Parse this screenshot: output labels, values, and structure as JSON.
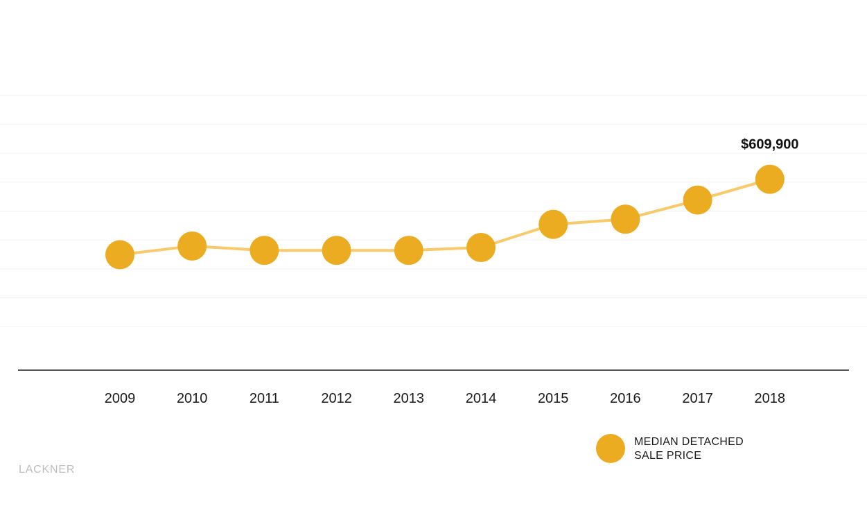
{
  "chart_data": {
    "type": "line",
    "categories": [
      "2009",
      "2010",
      "2011",
      "2012",
      "2013",
      "2014",
      "2015",
      "2016",
      "2017",
      "2018"
    ],
    "series": [
      {
        "name": "MEDIAN DETACHED SALE PRICE",
        "values": [
          349000,
          379000,
          364000,
          364000,
          364000,
          374000,
          454000,
          472000,
          538000,
          609900
        ],
        "data_labels": [
          "",
          "",
          "",
          "",
          "",
          "",
          "",
          "",
          "",
          "$609,900"
        ]
      }
    ],
    "ylim": [
      0,
      900000
    ],
    "y_ticks": [
      100000,
      200000,
      300000,
      400000,
      500000,
      600000,
      700000,
      800000,
      900000
    ],
    "grid": true,
    "legend_position": "bottom-right",
    "colors": {
      "marker": "#ecac21",
      "line": "#f8ca6a",
      "axis": "#555555",
      "grid": "#f2f2f2"
    }
  },
  "legend": {
    "line1": "MEDIAN DETACHED",
    "line2": "SALE PRICE"
  },
  "brand": {
    "text": "LACKNER"
  }
}
